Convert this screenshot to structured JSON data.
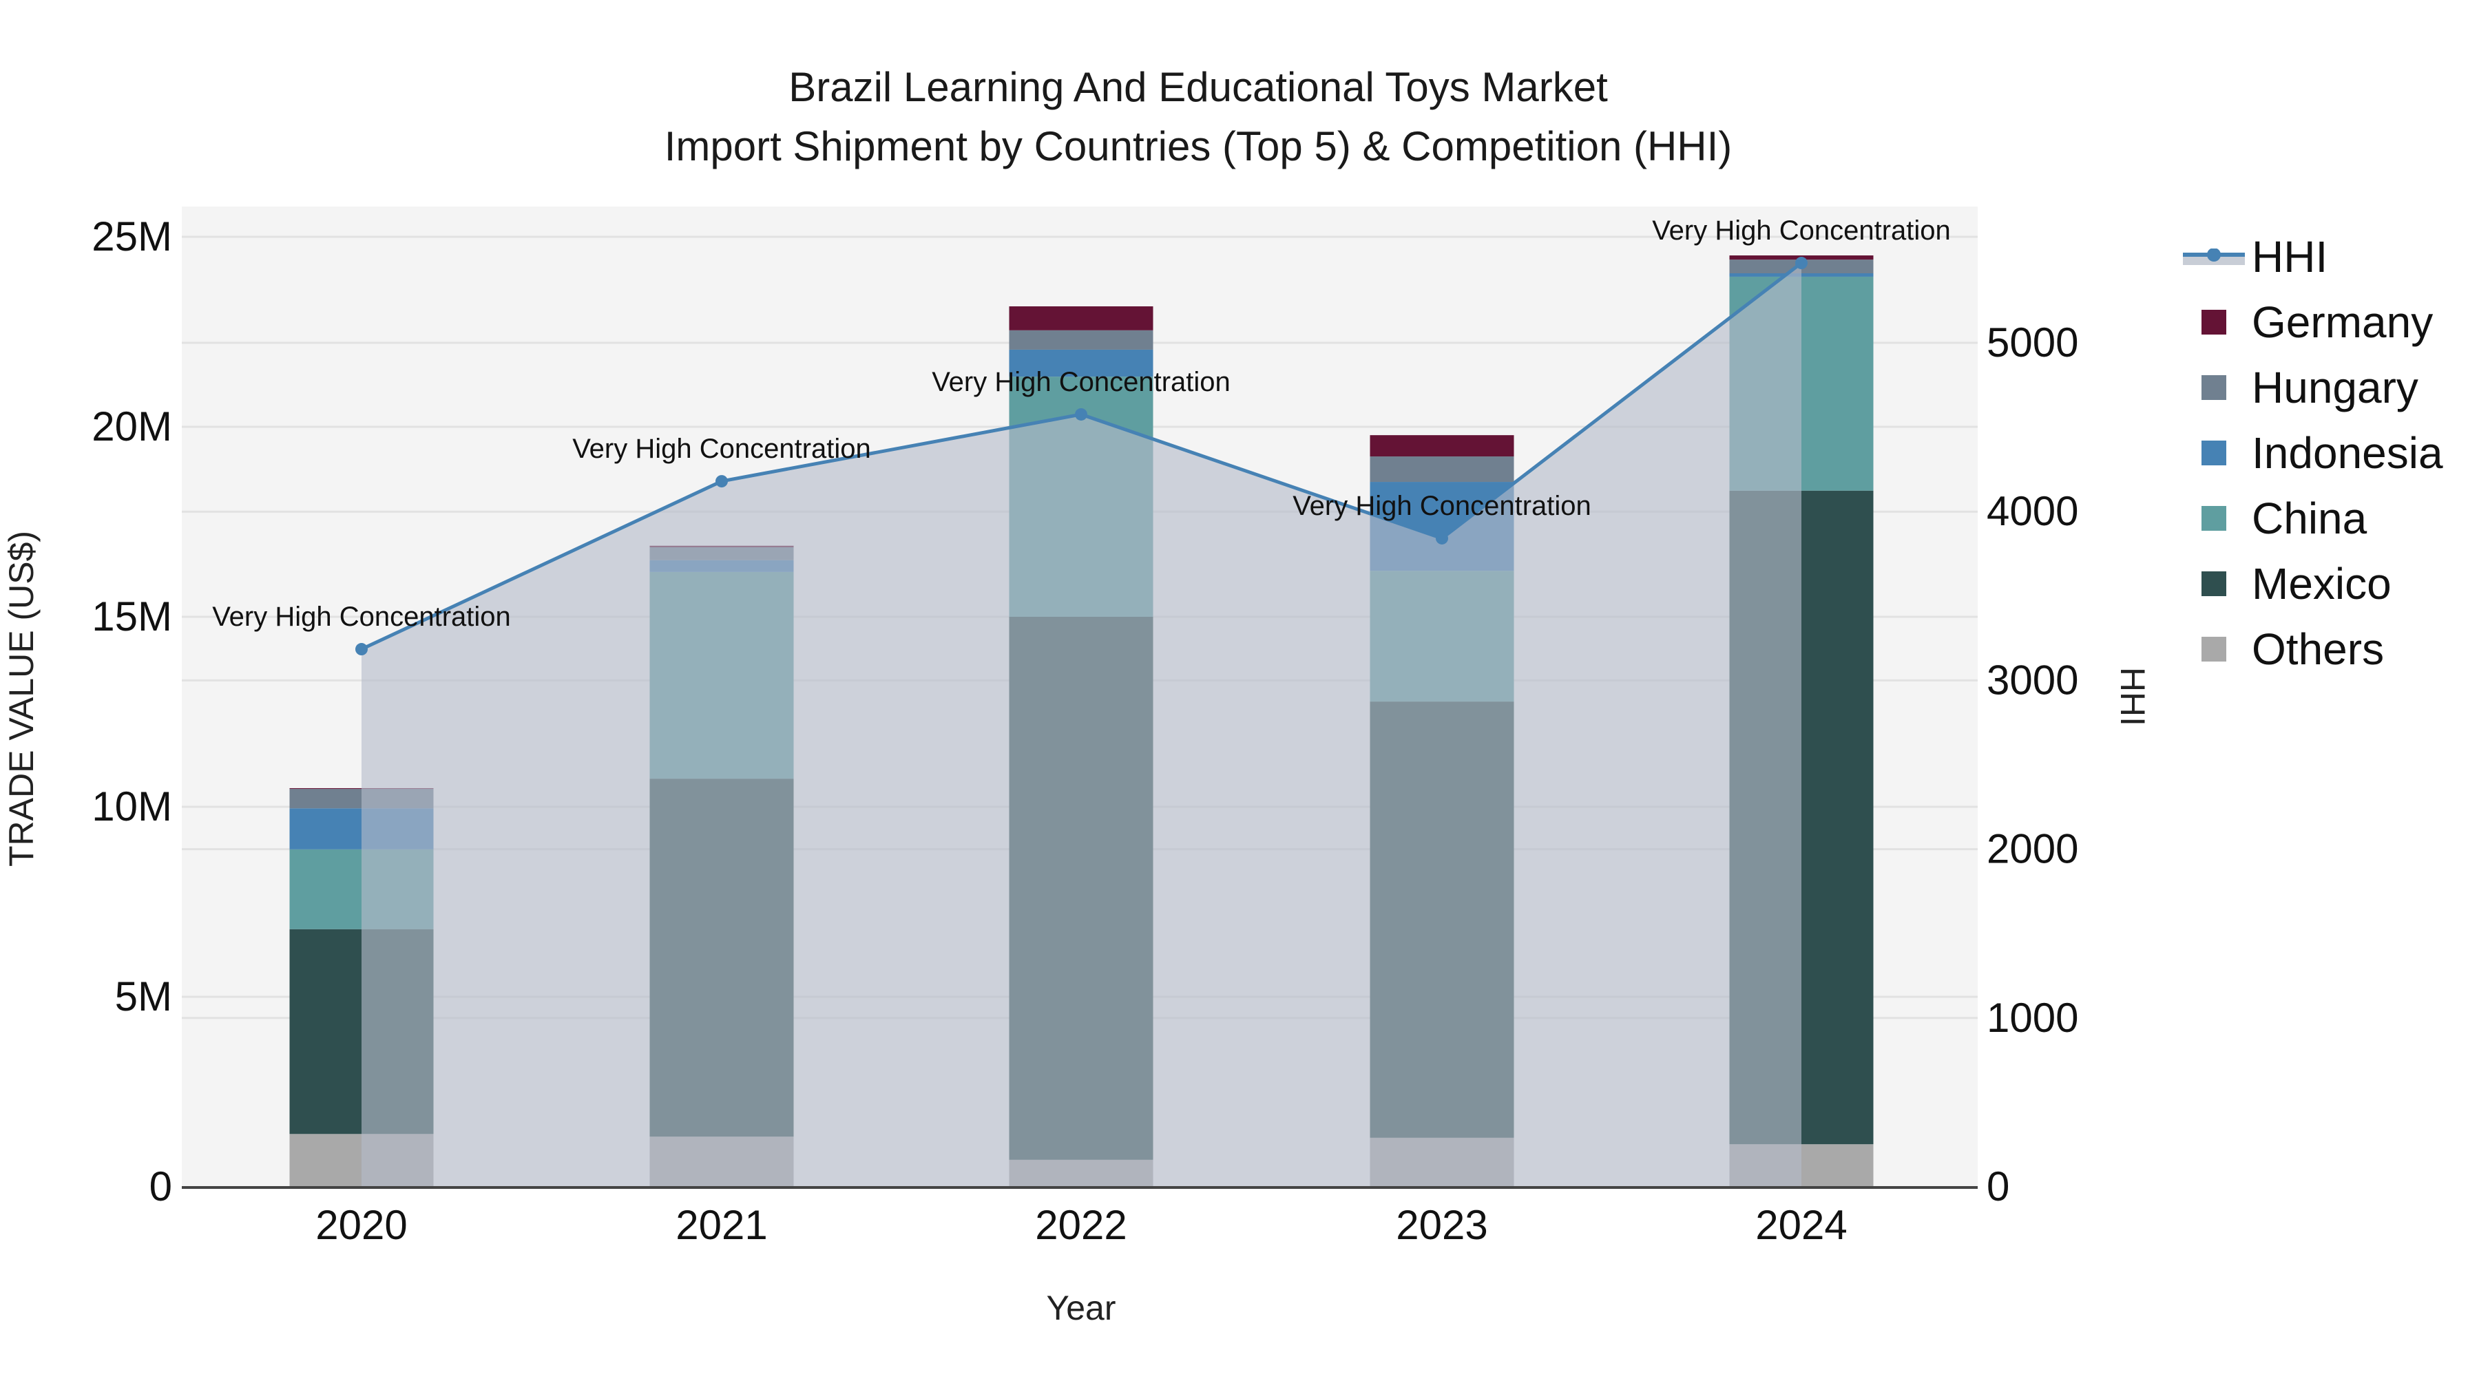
{
  "title": {
    "line1": "Brazil Learning And Educational Toys Market",
    "line2": "Import Shipment by Countries (Top 5) & Competition (HHI)"
  },
  "axes": {
    "x_label": "Year",
    "y_left_label": "TRADE VALUE (US$)",
    "y_right_label": "HHI",
    "y_left_ticks": [
      "0",
      "5M",
      "10M",
      "15M",
      "20M",
      "25M"
    ],
    "y_right_ticks": [
      "0",
      "1000",
      "2000",
      "3000",
      "4000",
      "5000"
    ],
    "x_ticks": [
      "2020",
      "2021",
      "2022",
      "2023",
      "2024"
    ]
  },
  "legend": {
    "items": [
      {
        "label": "HHI",
        "color": "#4682b4",
        "type": "line"
      },
      {
        "label": "Germany",
        "color": "#641335",
        "type": "bar"
      },
      {
        "label": "Hungary",
        "color": "#708090",
        "type": "bar"
      },
      {
        "label": "Indonesia",
        "color": "#4682b4",
        "type": "bar"
      },
      {
        "label": "China",
        "color": "#5f9ea0",
        "type": "bar"
      },
      {
        "label": "Mexico",
        "color": "#2f4f4f",
        "type": "bar"
      },
      {
        "label": "Others",
        "color": "#a9a9a9",
        "type": "bar"
      }
    ]
  },
  "annotations": [
    {
      "year": "2020",
      "text": "Very High Concentration"
    },
    {
      "year": "2021",
      "text": "Very High Concentration"
    },
    {
      "year": "2022",
      "text": "Very High Concentration"
    },
    {
      "year": "2023",
      "text": "Very High Concentration"
    },
    {
      "year": "2024",
      "text": "Very High Concentration"
    }
  ],
  "chart_data": {
    "type": "bar",
    "stacked": true,
    "title": "Brazil Learning And Educational Toys Market - Import Shipment by Countries (Top 5) & Competition (HHI)",
    "xlabel": "Year",
    "ylabel": "TRADE VALUE (US$)",
    "y2label": "HHI",
    "categories": [
      "2020",
      "2021",
      "2022",
      "2023",
      "2024"
    ],
    "ylim": [
      0,
      26000000
    ],
    "y2lim": [
      0,
      5800
    ],
    "grid": true,
    "legend_position": "right",
    "series": [
      {
        "name": "Others",
        "color": "#a9a9a9",
        "values": [
          1390000,
          1320000,
          710000,
          1290000,
          1120000
        ]
      },
      {
        "name": "Mexico",
        "color": "#2f4f4f",
        "values": [
          5390000,
          9420000,
          14290000,
          11480000,
          17200000
        ]
      },
      {
        "name": "China",
        "color": "#5f9ea0",
        "values": [
          2100000,
          5440000,
          6320000,
          3440000,
          5630000
        ]
      },
      {
        "name": "Indonesia",
        "color": "#4682b4",
        "values": [
          1080000,
          310000,
          710000,
          2340000,
          90000
        ]
      },
      {
        "name": "Hungary",
        "color": "#708090",
        "values": [
          510000,
          340000,
          510000,
          670000,
          360000
        ]
      },
      {
        "name": "Germany",
        "color": "#641335",
        "values": [
          20000,
          40000,
          630000,
          560000,
          110000
        ]
      }
    ],
    "line_series": {
      "name": "HHI",
      "axis": "right",
      "color": "#4682b4",
      "fill": "tozeroy",
      "values": [
        3185,
        4180,
        4576,
        3842,
        5473
      ],
      "labels": [
        "Very High Concentration",
        "Very High Concentration",
        "Very High Concentration",
        "Very High Concentration",
        "Very High Concentration"
      ]
    }
  }
}
